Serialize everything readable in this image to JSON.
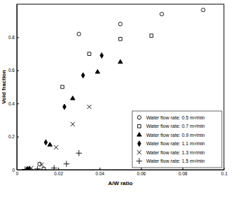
{
  "chart_data": {
    "type": "scatter",
    "x_label": "A/W ratio",
    "y_label": "Void fraction",
    "xlim": [
      0,
      0.1
    ],
    "xticks": [
      0,
      0.02,
      0.04,
      0.06,
      0.08,
      0.1
    ],
    "ylim": [
      0,
      1
    ],
    "yticks": [
      0,
      0.2,
      0.4,
      0.6,
      0.8
    ],
    "grid": false,
    "legend": "lower right",
    "series": [
      {
        "name": "Water flow rate: 0.5 m³/min",
        "color": "#000000",
        "marker": "circle",
        "x": [
          0.011,
          0.03,
          0.05,
          0.07,
          0.09
        ],
        "values": [
          0.035,
          0.82,
          0.88,
          0.94,
          0.965
        ]
      },
      {
        "name": "Water flow rate: 0.7 m³/min",
        "color": "#000000",
        "marker": "square",
        "x": [
          0.013,
          0.022,
          0.035,
          0.05,
          0.065
        ],
        "values": [
          0.005,
          0.5,
          0.7,
          0.79,
          0.81
        ]
      },
      {
        "name": "Water flow rate: 0.9 m³/min",
        "color": "#000000",
        "marker": "triangle",
        "x": [
          0.006,
          0.016,
          0.027,
          0.039,
          0.05
        ],
        "values": [
          0.005,
          0.15,
          0.43,
          0.59,
          0.65
        ]
      },
      {
        "name": "Water flow rate: 1.1 m³/min",
        "color": "#000000",
        "marker": "diamond",
        "x": [
          0.005,
          0.014,
          0.023,
          0.032,
          0.041
        ],
        "values": [
          0.003,
          0.165,
          0.38,
          0.57,
          0.69
        ]
      },
      {
        "name": "Water flow rate: 1.3 m³/min",
        "color": "#000000",
        "marker": "x",
        "x": [
          0.007,
          0.012,
          0.019,
          0.027,
          0.035
        ],
        "values": [
          0.01,
          0.03,
          0.135,
          0.275,
          0.38
        ]
      },
      {
        "name": "Water flow rate: 1.5 m³/min",
        "color": "#000000",
        "marker": "plus",
        "x": [
          0.004,
          0.01,
          0.018,
          0.024,
          0.03
        ],
        "values": [
          0.002,
          0.005,
          0.01,
          0.035,
          0.1
        ]
      }
    ]
  }
}
